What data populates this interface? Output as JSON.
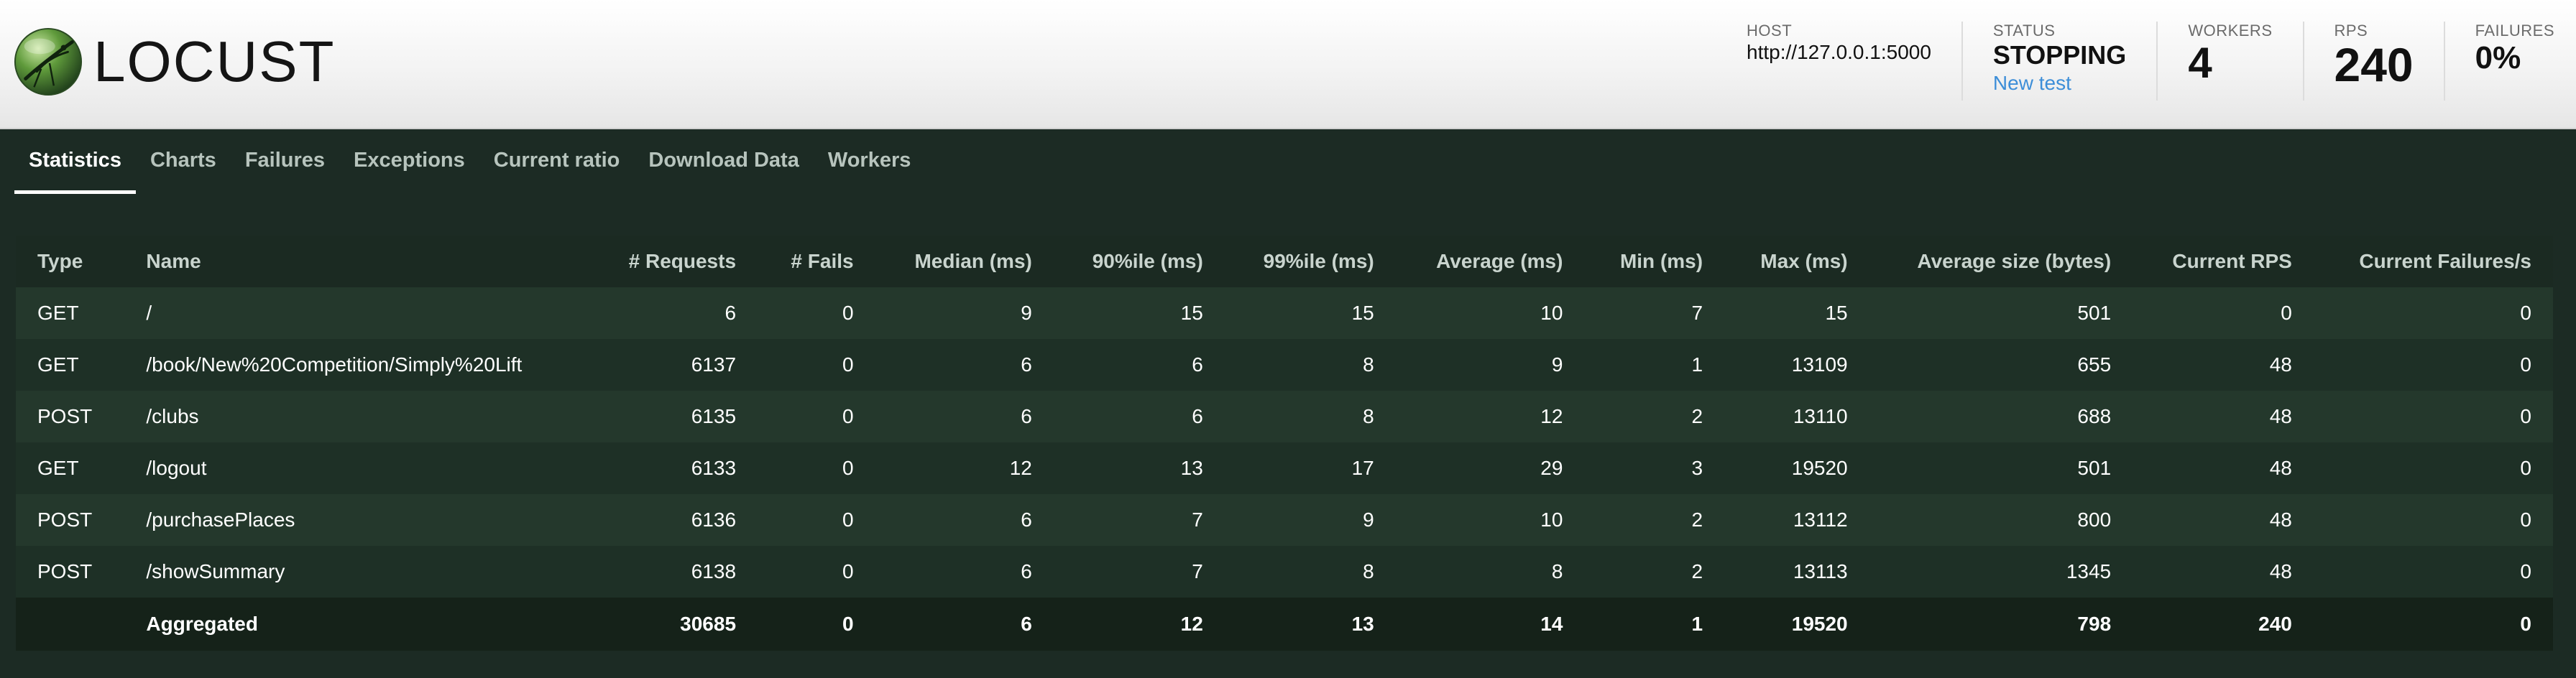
{
  "app": {
    "logo_text": "LOCUST"
  },
  "header": {
    "host": {
      "label": "HOST",
      "value": "http://127.0.0.1:5000"
    },
    "status": {
      "label": "STATUS",
      "value": "STOPPING",
      "link": "New test"
    },
    "workers": {
      "label": "WORKERS",
      "value": "4"
    },
    "rps": {
      "label": "RPS",
      "value": "240"
    },
    "failures": {
      "label": "FAILURES",
      "value": "0%"
    }
  },
  "tabs": [
    {
      "label": "Statistics",
      "active": true
    },
    {
      "label": "Charts"
    },
    {
      "label": "Failures"
    },
    {
      "label": "Exceptions"
    },
    {
      "label": "Current ratio"
    },
    {
      "label": "Download Data"
    },
    {
      "label": "Workers"
    }
  ],
  "table": {
    "columns": [
      "Type",
      "Name",
      "# Requests",
      "# Fails",
      "Median (ms)",
      "90%ile (ms)",
      "99%ile (ms)",
      "Average (ms)",
      "Min (ms)",
      "Max (ms)",
      "Average size (bytes)",
      "Current RPS",
      "Current Failures/s"
    ],
    "rows": [
      [
        "GET",
        "/",
        "6",
        "0",
        "9",
        "15",
        "15",
        "10",
        "7",
        "15",
        "501",
        "0",
        "0"
      ],
      [
        "GET",
        "/book/New%20Competition/Simply%20Lift",
        "6137",
        "0",
        "6",
        "6",
        "8",
        "9",
        "1",
        "13109",
        "655",
        "48",
        "0"
      ],
      [
        "POST",
        "/clubs",
        "6135",
        "0",
        "6",
        "6",
        "8",
        "12",
        "2",
        "13110",
        "688",
        "48",
        "0"
      ],
      [
        "GET",
        "/logout",
        "6133",
        "0",
        "12",
        "13",
        "17",
        "29",
        "3",
        "19520",
        "501",
        "48",
        "0"
      ],
      [
        "POST",
        "/purchasePlaces",
        "6136",
        "0",
        "6",
        "7",
        "9",
        "10",
        "2",
        "13112",
        "800",
        "48",
        "0"
      ],
      [
        "POST",
        "/showSummary",
        "6138",
        "0",
        "6",
        "7",
        "8",
        "8",
        "2",
        "13113",
        "1345",
        "48",
        "0"
      ]
    ],
    "aggregated": [
      "",
      "Aggregated",
      "30685",
      "0",
      "6",
      "12",
      "13",
      "14",
      "1",
      "19520",
      "798",
      "240",
      "0"
    ]
  },
  "colors": {
    "background": "#1c2b24",
    "header_bg": "#f3f3f3",
    "link": "#3d8ed8",
    "row_odd": "#24382c",
    "row_even": "#1e3026"
  },
  "icons": {
    "logo": "locust-logo-icon"
  }
}
